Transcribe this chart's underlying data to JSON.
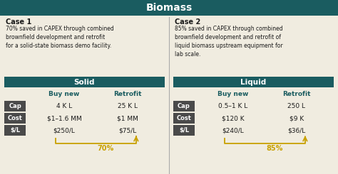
{
  "title": "Biomass",
  "title_bg": "#1a5c60",
  "title_color": "#ffffff",
  "bg_color": "#f0ece0",
  "table_header_bg": "#1a5c60",
  "table_header_color": "#ffffff",
  "col_header_color": "#1a5c60",
  "label_bg": "#4a4a4a",
  "label_color": "#ffffff",
  "savings_color": "#c8a000",
  "divider_color": "#aaaaaa",
  "text_color": "#1a1a1a",
  "case1": {
    "header": "Case 1",
    "desc": "70% saved in CAPEX through combined\nbrownfield development and retrofit\nfor a solid-state biomass demo facility.",
    "table_header": "Solid",
    "col_headers": [
      "Buy new",
      "Retrofit"
    ],
    "rows": [
      {
        "label": "Cap",
        "buy_new": "4 K L",
        "retrofit": "25 K L"
      },
      {
        "label": "Cost",
        "buy_new": "$1–1.6 MM",
        "retrofit": "$1 MM"
      },
      {
        "label": "$/L",
        "buy_new": "$250/L",
        "retrofit": "$75/L"
      }
    ],
    "savings": "70%"
  },
  "case2": {
    "header": "Case 2",
    "desc": "85% saved in CAPEX through combined\nbrownfield development and retrofit of\nliquid biomass upstream equipment for\nlab scale.",
    "table_header": "Liquid",
    "col_headers": [
      "Buy new",
      "Retrofit"
    ],
    "rows": [
      {
        "label": "Cap",
        "buy_new": "0.5–1 K L",
        "retrofit": "250 L"
      },
      {
        "label": "Cost",
        "buy_new": "$120 K",
        "retrofit": "$9 K"
      },
      {
        "label": "$/L",
        "buy_new": "$240/L",
        "retrofit": "$36/L"
      }
    ],
    "savings": "85%"
  }
}
